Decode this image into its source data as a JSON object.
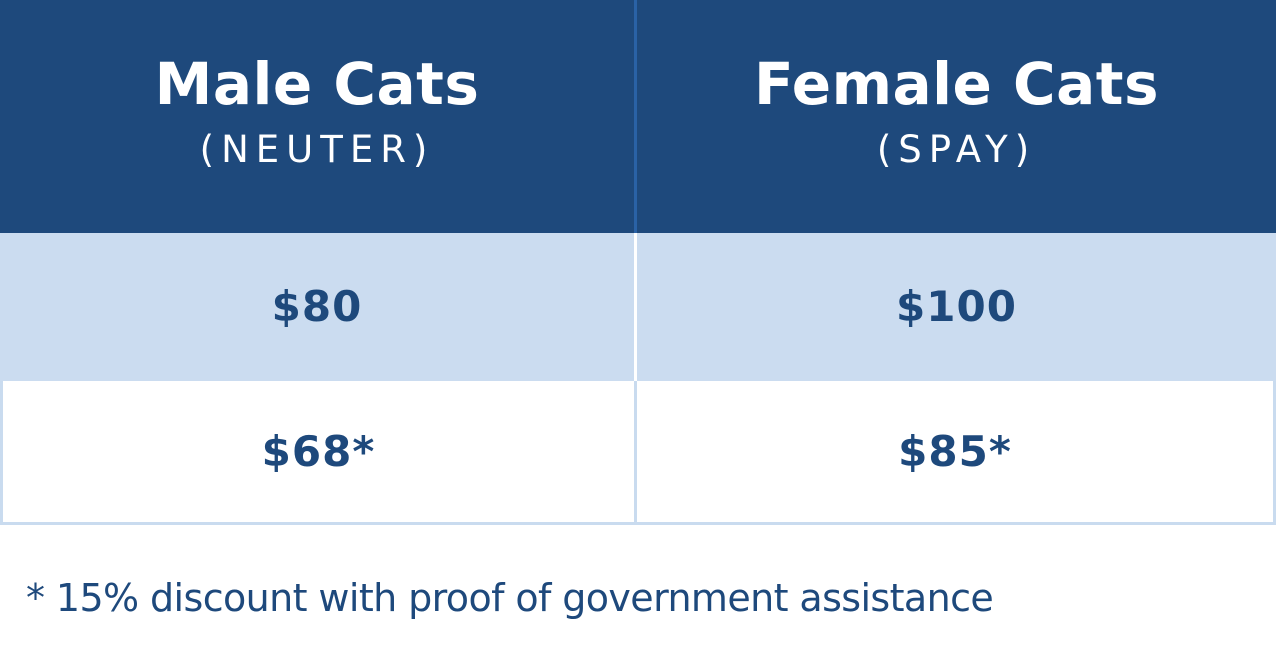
{
  "columns": [
    {
      "title": "Male Cats",
      "subtitle": "(NEUTER)",
      "regular_price": "$80",
      "discount_price": "$68*"
    },
    {
      "title": "Female Cats",
      "subtitle": "(SPAY)",
      "regular_price": "$100",
      "discount_price": "$85*"
    }
  ],
  "footnote": "* 15% discount with proof of government assistance",
  "colors": {
    "header_background": "#1e497c",
    "header_text": "#ffffff",
    "shaded_row": "#cbdcf0",
    "price_text": "#1e497c",
    "border": "#c9dbef"
  }
}
